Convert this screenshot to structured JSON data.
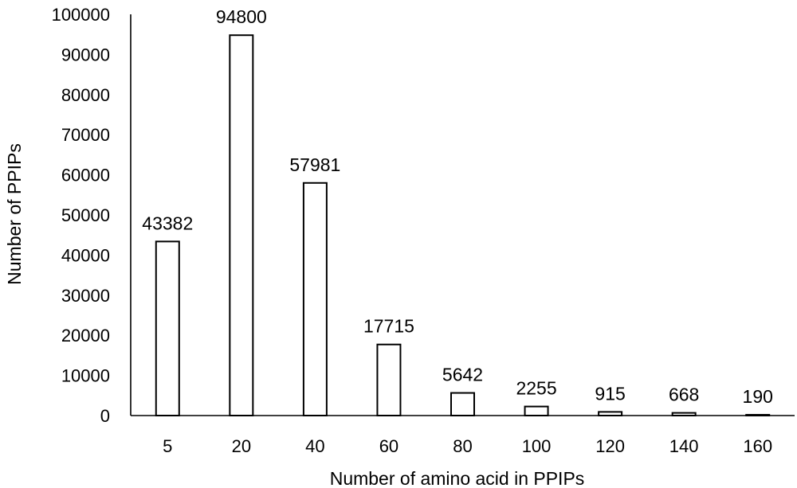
{
  "chart_data": {
    "type": "bar",
    "title": "",
    "xlabel": "Number of amino acid in PPIPs",
    "ylabel": "Number of PPIPs",
    "categories": [
      "5",
      "20",
      "40",
      "60",
      "80",
      "100",
      "120",
      "140",
      "160"
    ],
    "series": [
      {
        "values": [
          43382,
          94800,
          57981,
          17715,
          5642,
          2255,
          915,
          668,
          190
        ]
      }
    ],
    "data_labels": [
      "43382",
      "94800",
      "57981",
      "17715",
      "5642",
      "2255",
      "915",
      "668",
      "190"
    ],
    "ylim": [
      0,
      100000
    ],
    "yticks": [
      0,
      10000,
      20000,
      30000,
      40000,
      50000,
      60000,
      70000,
      80000,
      90000,
      100000
    ],
    "ytick_labels": [
      "0",
      "10000",
      "20000",
      "30000",
      "40000",
      "50000",
      "60000",
      "70000",
      "80000",
      "90000",
      "100000"
    ],
    "grid": false,
    "legend": "none",
    "bar_fill": "#ffffff",
    "bar_stroke": "#000000"
  }
}
